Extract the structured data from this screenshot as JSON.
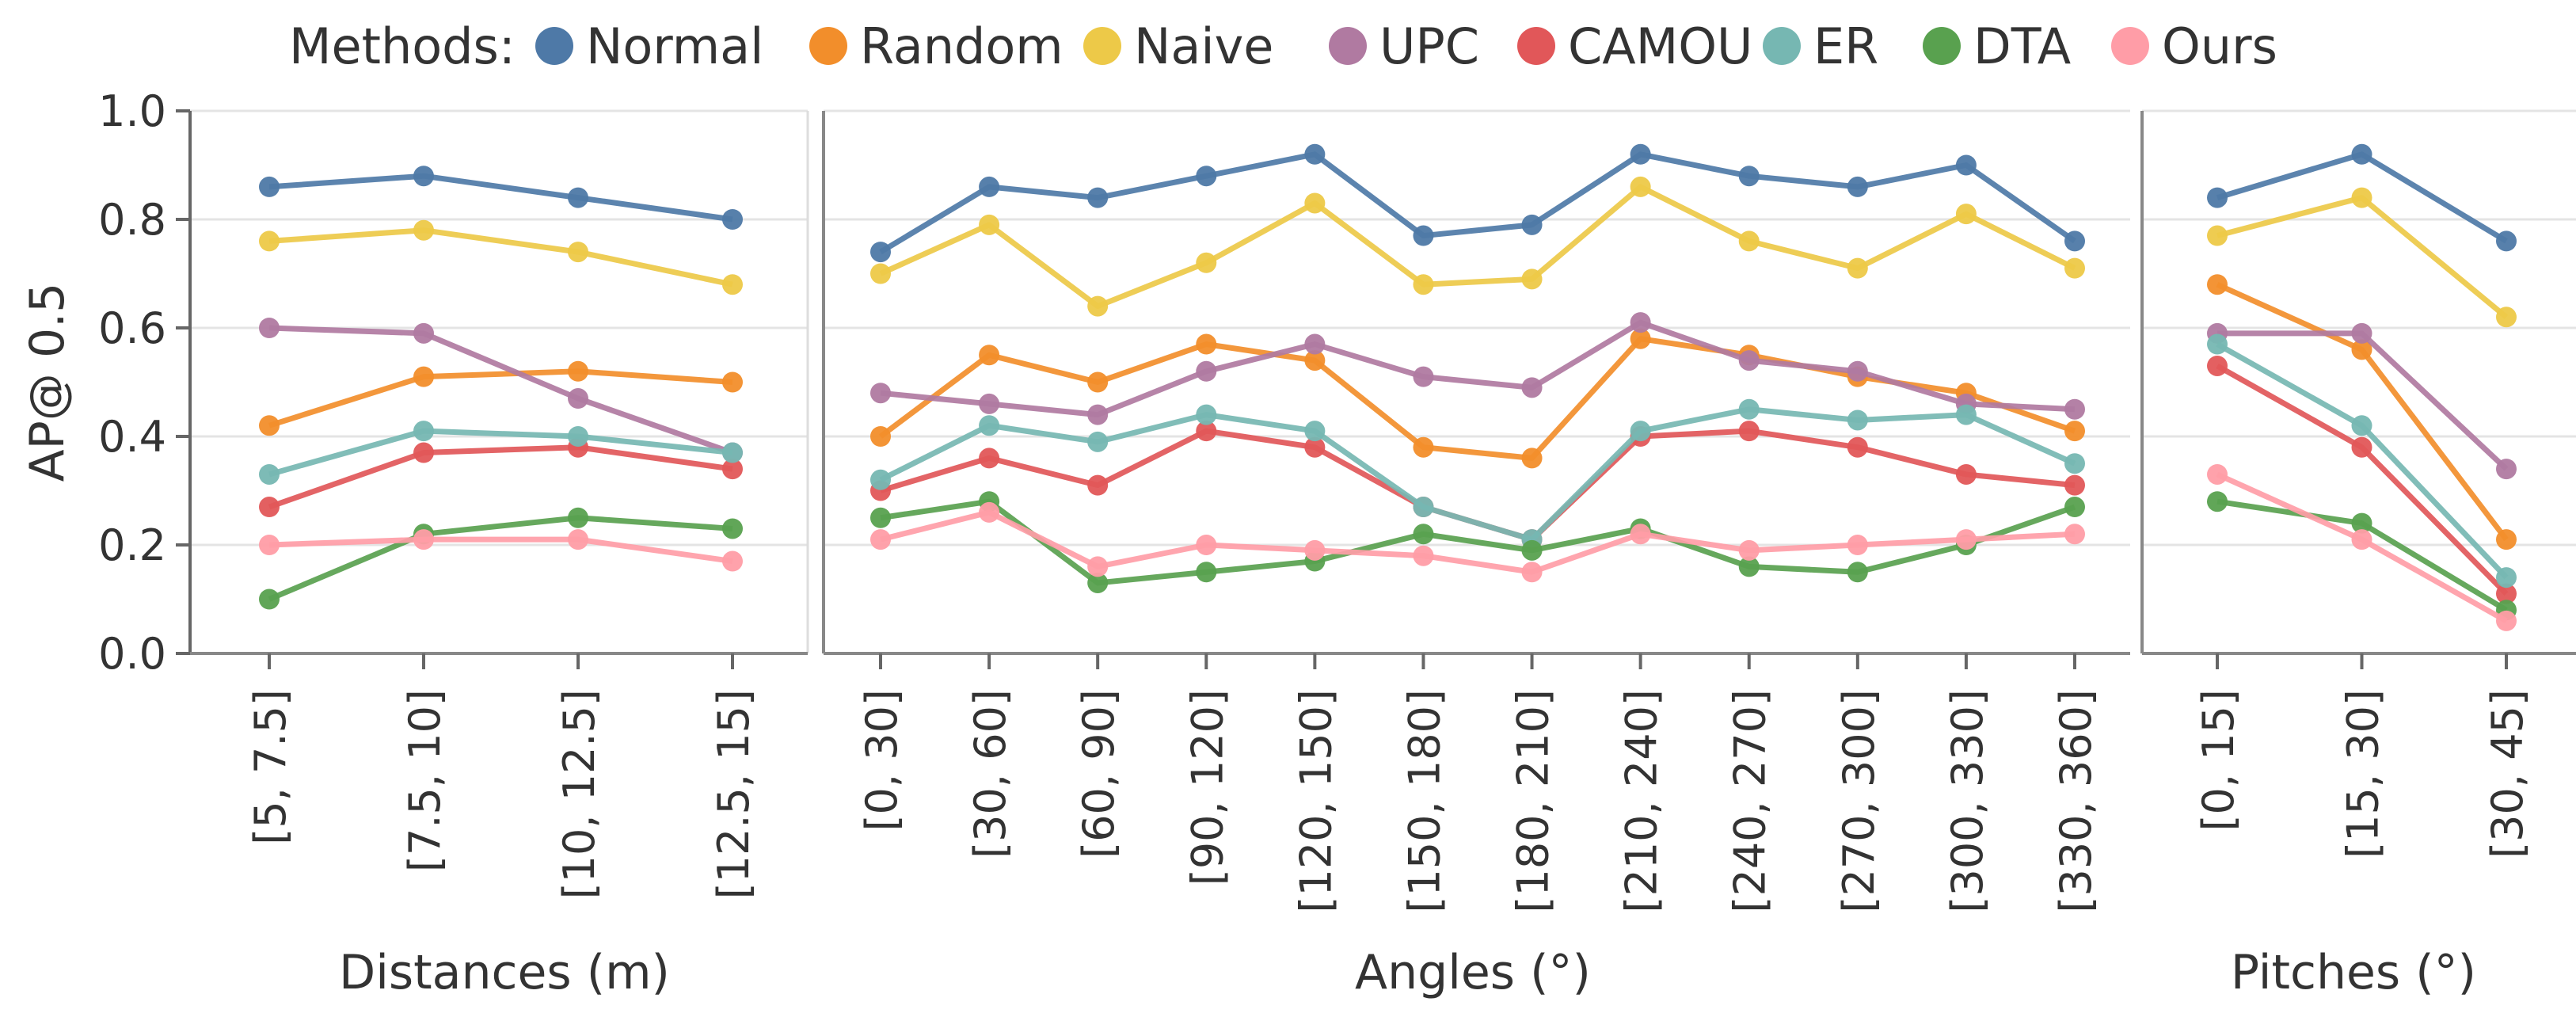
{
  "chart_data": {
    "type": "line",
    "ylabel": "AP@ 0.5",
    "ylim": [
      0,
      1.0
    ],
    "yticks": [
      "0.0",
      "0.2",
      "0.4",
      "0.6",
      "0.8",
      "1.0"
    ],
    "grid": true,
    "legend": {
      "title": "Methods:",
      "placement": "top",
      "entries": [
        {
          "name": "Normal",
          "color": "#4e79a7"
        },
        {
          "name": "Random",
          "color": "#f28e2b"
        },
        {
          "name": "Naive",
          "color": "#edc948"
        },
        {
          "name": "UPC",
          "color": "#b07aa1"
        },
        {
          "name": "CAMOU",
          "color": "#e15759"
        },
        {
          "name": "ER",
          "color": "#76b7b2"
        },
        {
          "name": "DTA",
          "color": "#59a14f"
        },
        {
          "name": "Ours",
          "color": "#ff9da7"
        }
      ]
    },
    "panels": [
      {
        "xlabel": "Distances (m)",
        "categories": [
          "[5, 7.5]",
          "[7.5, 10]",
          "[10, 12.5]",
          "[12.5, 15]"
        ],
        "series": [
          {
            "name": "Normal",
            "values": [
              0.86,
              0.88,
              0.84,
              0.8
            ]
          },
          {
            "name": "Random",
            "values": [
              0.42,
              0.51,
              0.52,
              0.5
            ]
          },
          {
            "name": "Naive",
            "values": [
              0.76,
              0.78,
              0.74,
              0.68
            ]
          },
          {
            "name": "UPC",
            "values": [
              0.6,
              0.59,
              0.47,
              0.37
            ]
          },
          {
            "name": "CAMOU",
            "values": [
              0.27,
              0.37,
              0.38,
              0.34
            ]
          },
          {
            "name": "ER",
            "values": [
              0.33,
              0.41,
              0.4,
              0.37
            ]
          },
          {
            "name": "DTA",
            "values": [
              0.1,
              0.22,
              0.25,
              0.23
            ]
          },
          {
            "name": "Ours",
            "values": [
              0.2,
              0.21,
              0.21,
              0.17
            ]
          }
        ]
      },
      {
        "xlabel": "Angles (°)",
        "categories": [
          "[0, 30]",
          "[30, 60]",
          "[60, 90]",
          "[90, 120]",
          "[120, 150]",
          "[150, 180]",
          "[180, 210]",
          "[210, 240]",
          "[240, 270]",
          "[270, 300]",
          "[300, 330]",
          "[330, 360]"
        ],
        "series": [
          {
            "name": "Normal",
            "values": [
              0.74,
              0.86,
              0.84,
              0.88,
              0.92,
              0.77,
              0.79,
              0.92,
              0.88,
              0.86,
              0.9,
              0.76
            ]
          },
          {
            "name": "Random",
            "values": [
              0.4,
              0.55,
              0.5,
              0.57,
              0.54,
              0.38,
              0.36,
              0.58,
              0.55,
              0.51,
              0.48,
              0.41
            ]
          },
          {
            "name": "Naive",
            "values": [
              0.7,
              0.79,
              0.64,
              0.72,
              0.83,
              0.68,
              0.69,
              0.86,
              0.76,
              0.71,
              0.81,
              0.71
            ]
          },
          {
            "name": "UPC",
            "values": [
              0.48,
              0.46,
              0.44,
              0.52,
              0.57,
              0.51,
              0.49,
              0.61,
              0.54,
              0.52,
              0.46,
              0.45
            ]
          },
          {
            "name": "CAMOU",
            "values": [
              0.3,
              0.36,
              0.31,
              0.41,
              0.38,
              0.27,
              0.21,
              0.4,
              0.41,
              0.38,
              0.33,
              0.31
            ]
          },
          {
            "name": "ER",
            "values": [
              0.32,
              0.42,
              0.39,
              0.44,
              0.41,
              0.27,
              0.21,
              0.41,
              0.45,
              0.43,
              0.44,
              0.35
            ]
          },
          {
            "name": "DTA",
            "values": [
              0.25,
              0.28,
              0.13,
              0.15,
              0.17,
              0.22,
              0.19,
              0.23,
              0.16,
              0.15,
              0.2,
              0.27
            ]
          },
          {
            "name": "Ours",
            "values": [
              0.21,
              0.26,
              0.16,
              0.2,
              0.19,
              0.18,
              0.15,
              0.22,
              0.19,
              0.2,
              0.21,
              0.22
            ]
          }
        ]
      },
      {
        "xlabel": "Pitches (°)",
        "categories": [
          "[0, 15]",
          "[15, 30]",
          "[30, 45]"
        ],
        "series": [
          {
            "name": "Normal",
            "values": [
              0.84,
              0.92,
              0.76
            ]
          },
          {
            "name": "Random",
            "values": [
              0.68,
              0.56,
              0.21
            ]
          },
          {
            "name": "Naive",
            "values": [
              0.77,
              0.84,
              0.62
            ]
          },
          {
            "name": "UPC",
            "values": [
              0.59,
              0.59,
              0.34
            ]
          },
          {
            "name": "CAMOU",
            "values": [
              0.53,
              0.38,
              0.11
            ]
          },
          {
            "name": "ER",
            "values": [
              0.57,
              0.42,
              0.14
            ]
          },
          {
            "name": "DTA",
            "values": [
              0.28,
              0.24,
              0.08
            ]
          },
          {
            "name": "Ours",
            "values": [
              0.33,
              0.21,
              0.06
            ]
          }
        ]
      }
    ]
  }
}
